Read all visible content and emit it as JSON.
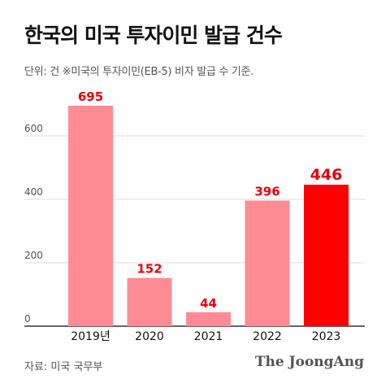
{
  "title": "한국의 미국 투자이민 발급 건수",
  "subtitle": "단위: 건 ※미국의 투자이민(EB-5) 비자 발급 수 기준.",
  "source": "자료: 미국 국무부",
  "brand": "The JoongAng",
  "colors": {
    "bar": "#FF8C94",
    "highlight": "#FF0000",
    "label": "#E8000B",
    "grid": "#DDDDDD",
    "axis": "#555555"
  },
  "chart_data": {
    "type": "bar",
    "categories": [
      "2019년",
      "2020",
      "2021",
      "2022",
      "2023"
    ],
    "values": [
      695,
      152,
      44,
      396,
      446
    ],
    "highlight_index": 4,
    "y_ticks": [
      0,
      200,
      400,
      600
    ],
    "ylim": [
      0,
      800
    ],
    "grid": true
  }
}
